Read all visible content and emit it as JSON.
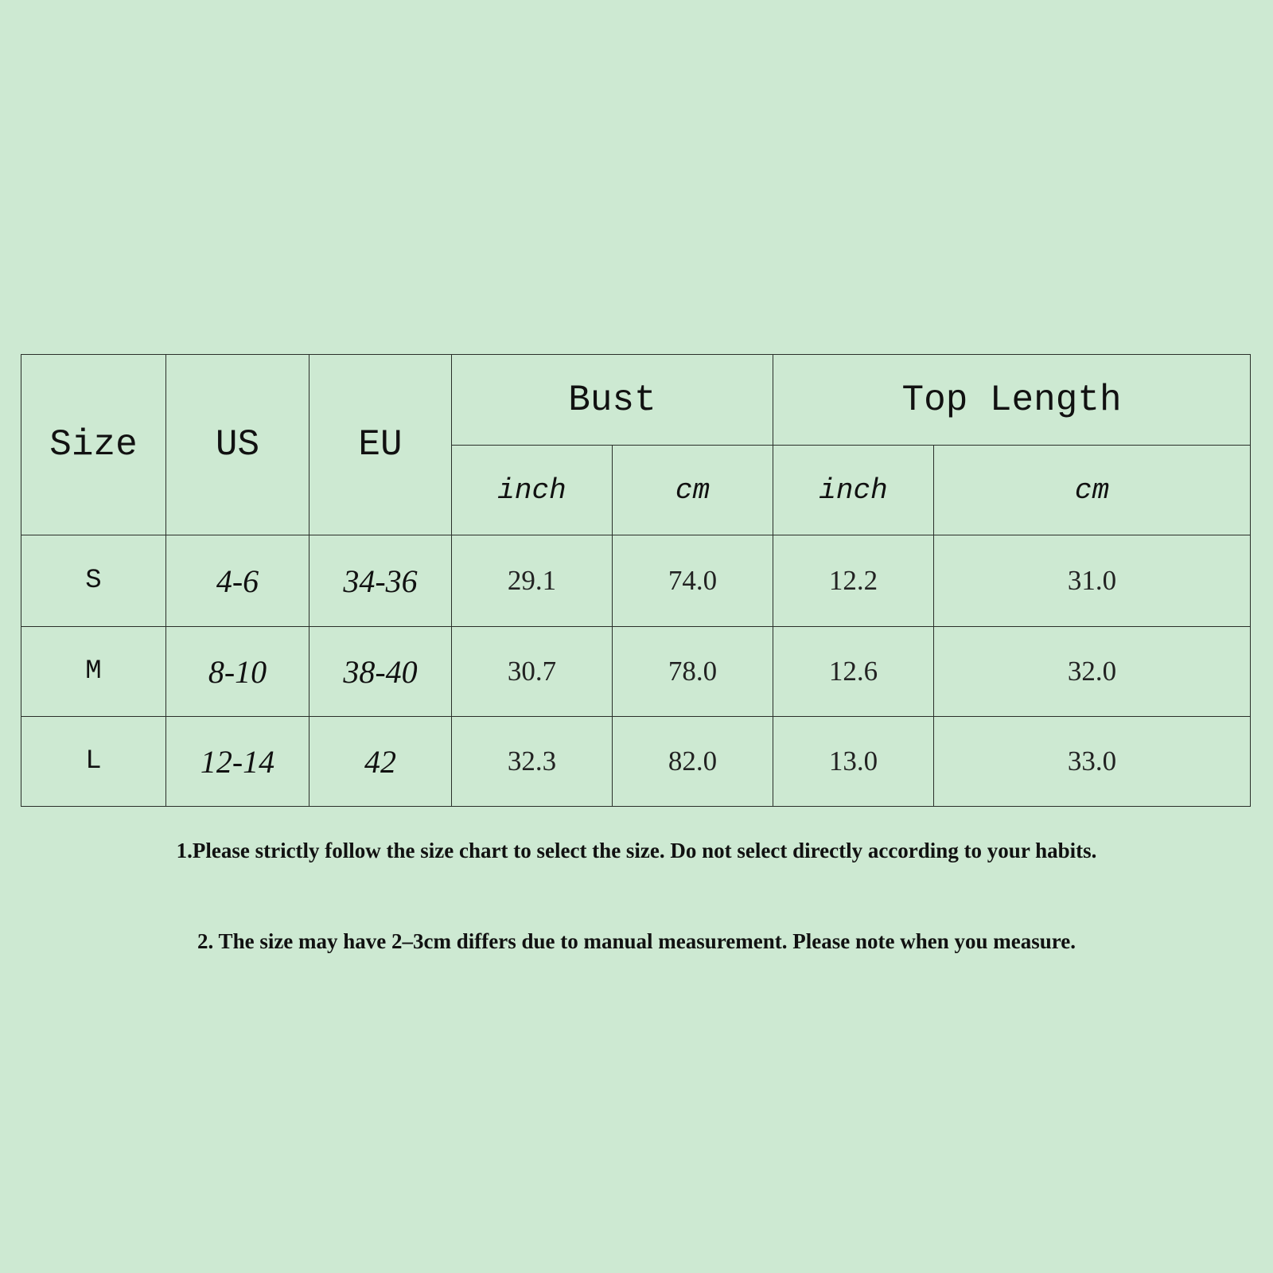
{
  "table": {
    "headers": {
      "size": "Size",
      "us": "US",
      "eu": "EU",
      "bust": "Bust",
      "top_length": "Top Length"
    },
    "units": [
      "inch",
      "cm",
      "inch",
      "cm"
    ],
    "rows": [
      {
        "size": "S",
        "us": "4-6",
        "eu": "34-36",
        "bust_inch": "29.1",
        "bust_cm": "74.0",
        "len_inch": "12.2",
        "len_cm": "31.0"
      },
      {
        "size": "M",
        "us": "8-10",
        "eu": "38-40",
        "bust_inch": "30.7",
        "bust_cm": "78.0",
        "len_inch": "12.6",
        "len_cm": "32.0"
      },
      {
        "size": "L",
        "us": "12-14",
        "eu": "42",
        "bust_inch": "32.3",
        "bust_cm": "82.0",
        "len_inch": "13.0",
        "len_cm": "33.0"
      }
    ]
  },
  "notes": [
    "1.Please strictly follow the size chart to select the size. Do not select directly according to your habits.",
    "2. The size may have 2–3cm differs due to manual measurement. Please note when you measure."
  ]
}
